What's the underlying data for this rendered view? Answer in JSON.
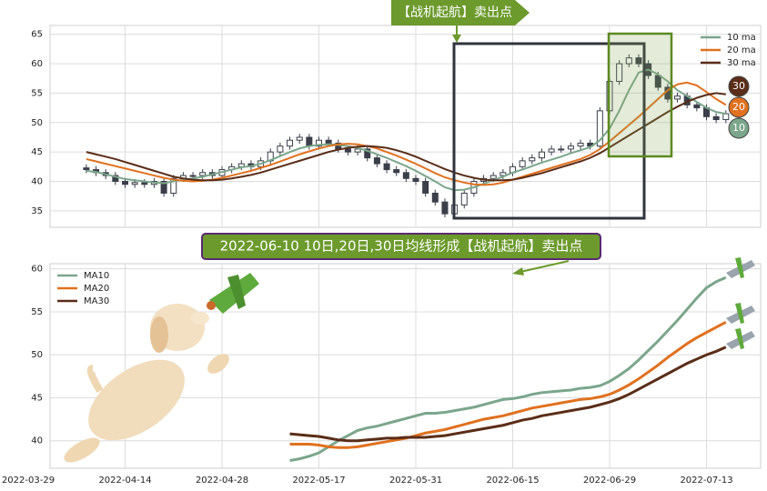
{
  "chart_data": [
    {
      "type": "candlestick",
      "annotation": "【战机起航】卖出点",
      "legend": "upper right",
      "grid": true,
      "ylim": [
        32.2,
        66.5
      ],
      "yticks": [
        35,
        40,
        45,
        50,
        55,
        60,
        65
      ],
      "candle_color": "#3a3f4a",
      "open": [
        null,
        null,
        null,
        null,
        null,
        null,
        42.3,
        42,
        41.5,
        41,
        40,
        39.5,
        39.8,
        39.5,
        40,
        38,
        40.5,
        41,
        41,
        41.5,
        41,
        42,
        42.5,
        43,
        42.5,
        43.5,
        45,
        46,
        47,
        47.5,
        46,
        47,
        46.5,
        45.5,
        45,
        45.5,
        44,
        43,
        42,
        41.5,
        40.5,
        40,
        38,
        36.5,
        34.5,
        36,
        38,
        40,
        40.5,
        41,
        41.5,
        42.5,
        43.5,
        44,
        45,
        45.5,
        45.5,
        46,
        46.5,
        46,
        52,
        57,
        60,
        61,
        60,
        58,
        56,
        54,
        54.5,
        53,
        52.5,
        51,
        50.5,
        null,
        null,
        null
      ],
      "high": [
        null,
        null,
        null,
        null,
        null,
        null,
        42.9,
        42.6,
        42.1,
        41.6,
        40.6,
        40.4,
        40.4,
        40.6,
        40.6,
        41.1,
        41.6,
        41.6,
        42.1,
        42.1,
        42.6,
        43.1,
        43.6,
        43.6,
        44.1,
        45.6,
        46.6,
        47.6,
        48.1,
        48.1,
        47.6,
        47.6,
        47.1,
        46.1,
        46.1,
        46.1,
        44.6,
        43.6,
        42.6,
        42.1,
        41.1,
        40.6,
        38.6,
        37.1,
        36.6,
        38.6,
        40.6,
        41.1,
        41.6,
        42.1,
        43.1,
        44.1,
        44.6,
        45.6,
        46.1,
        46.1,
        46.6,
        47.1,
        47.1,
        52.6,
        57.6,
        60.6,
        61.6,
        61.6,
        60.6,
        58.6,
        56.6,
        55.1,
        55.1,
        53.6,
        53.1,
        51.6,
        52.1,
        null,
        null,
        null
      ],
      "low": [
        null,
        null,
        null,
        null,
        null,
        null,
        41.4,
        40.9,
        40.4,
        39.4,
        38.9,
        38.9,
        38.9,
        38.9,
        37.4,
        37.4,
        39.9,
        40.4,
        40.4,
        40.4,
        40.4,
        41.4,
        41.9,
        41.9,
        41.9,
        42.9,
        44.4,
        45.4,
        46.4,
        45.4,
        45.4,
        45.9,
        44.9,
        44.4,
        44.4,
        43.4,
        42.4,
        41.4,
        40.9,
        39.9,
        39.4,
        37.4,
        35.9,
        33.9,
        33.9,
        35.4,
        37.4,
        39.4,
        39.9,
        40.4,
        40.9,
        41.9,
        42.9,
        43.4,
        44.4,
        44.9,
        44.9,
        45.4,
        45.4,
        45.4,
        51.4,
        56.4,
        59.4,
        59.4,
        57.4,
        55.4,
        53.4,
        53.4,
        52.4,
        51.9,
        50.4,
        49.9,
        49.9,
        null,
        null,
        null
      ],
      "close": [
        null,
        null,
        null,
        null,
        null,
        null,
        42,
        41.5,
        41,
        40,
        39.5,
        39.8,
        39.5,
        40,
        38,
        40.5,
        41,
        41,
        41.5,
        41,
        42,
        42.5,
        43,
        42.5,
        43.5,
        45,
        46,
        47,
        47.5,
        46,
        47,
        46.5,
        45.5,
        45,
        45.5,
        44,
        43,
        42,
        41.5,
        40.5,
        40,
        38,
        36.5,
        34.5,
        36,
        38,
        40,
        40.5,
        41,
        41.5,
        42.5,
        43.5,
        44,
        45,
        45.5,
        45.5,
        46,
        46.5,
        46,
        52,
        57,
        60,
        61,
        60,
        58,
        56,
        54,
        54.5,
        53,
        52.5,
        51,
        50.5,
        51.5,
        null,
        null,
        null
      ],
      "series": [
        {
          "name": "10 ma",
          "color": "#7ba68b",
          "values": [
            null,
            null,
            null,
            null,
            null,
            null,
            41.8,
            41.6,
            41.2,
            40.8,
            40.4,
            40.2,
            40,
            39.8,
            39.7,
            40,
            40.3,
            40.5,
            40.8,
            41.2,
            41.6,
            42,
            42.4,
            42.6,
            43,
            43.6,
            44.3,
            45,
            45.6,
            46,
            46.2,
            46.3,
            46.2,
            46,
            45.7,
            45.2,
            44.6,
            44,
            43.3,
            42.6,
            41.8,
            40.9,
            40,
            39,
            38.5,
            38.6,
            39,
            39.6,
            40.2,
            40.8,
            41.5,
            42,
            42.6,
            43.2,
            43.7,
            44.2,
            44.8,
            45.3,
            45.8,
            47,
            49,
            52,
            55.5,
            58.5,
            59,
            58.2,
            57,
            55.5,
            54.5,
            53.5,
            52.5,
            51.8,
            51.5,
            null,
            null,
            null
          ]
        },
        {
          "name": "20 ma",
          "color": "#e0711f",
          "values": [
            null,
            null,
            null,
            null,
            null,
            null,
            43.8,
            43.4,
            43,
            42.6,
            42.2,
            41.8,
            41.4,
            41,
            40.6,
            40.3,
            40.1,
            40,
            40.1,
            40.3,
            40.6,
            41,
            41.4,
            41.8,
            42.3,
            42.8,
            43.4,
            44,
            44.6,
            45.1,
            45.6,
            46,
            46.3,
            46.4,
            46.3,
            46,
            45.6,
            45,
            44.4,
            43.7,
            43,
            42.2,
            41.4,
            40.7,
            40.2,
            39.8,
            39.5,
            39.4,
            39.5,
            39.8,
            40.3,
            40.8,
            41.3,
            41.8,
            42.3,
            42.8,
            43.3,
            43.8,
            44.5,
            45.5,
            46.8,
            48.2,
            49.6,
            51,
            52.5,
            54,
            55.5,
            56.5,
            56.8,
            56.3,
            55.2,
            54,
            53,
            null,
            null,
            null
          ]
        },
        {
          "name": "30 ma",
          "color": "#5a2d18",
          "values": [
            null,
            null,
            null,
            null,
            null,
            null,
            45,
            44.6,
            44.2,
            43.8,
            43.3,
            42.8,
            42.3,
            41.8,
            41.3,
            40.8,
            40.5,
            40.3,
            40.2,
            40.2,
            40.3,
            40.5,
            40.8,
            41.1,
            41.5,
            42,
            42.5,
            43,
            43.5,
            44,
            44.5,
            45,
            45.4,
            45.7,
            45.9,
            46,
            45.9,
            45.7,
            45.3,
            44.8,
            44.2,
            43.5,
            42.8,
            42.1,
            41.5,
            41,
            40.6,
            40.3,
            40.2,
            40.2,
            40.3,
            40.6,
            41,
            41.4,
            41.9,
            42.4,
            42.9,
            43.4,
            44,
            44.8,
            45.8,
            46.8,
            47.8,
            48.8,
            49.8,
            50.8,
            51.8,
            52.7,
            53.5,
            54.2,
            54.7,
            55,
            54.8,
            null,
            null,
            null
          ]
        }
      ],
      "badges": [
        {
          "label": "30",
          "color": "#5a2d18"
        },
        {
          "label": "20",
          "color": "#e0711f"
        },
        {
          "label": "10",
          "color": "#7ba68b"
        }
      ]
    },
    {
      "type": "line",
      "title": "2022-06-10 10日,20日,30日均线形成【战机起航】卖出点",
      "legend": "upper left",
      "grid": true,
      "ylim": [
        36.8,
        60.6
      ],
      "yticks": [
        40,
        45,
        50,
        55,
        60
      ],
      "categories": [
        "2022-03-29",
        null,
        null,
        null,
        null,
        null,
        null,
        null,
        null,
        null,
        "2022-04-14",
        null,
        null,
        null,
        null,
        null,
        null,
        null,
        null,
        null,
        "2022-04-28",
        null,
        null,
        null,
        null,
        null,
        null,
        null,
        null,
        null,
        "2022-05-17",
        null,
        null,
        null,
        null,
        null,
        null,
        null,
        null,
        null,
        "2022-05-31",
        null,
        null,
        null,
        null,
        null,
        null,
        null,
        null,
        null,
        "2022-06-15",
        null,
        null,
        null,
        null,
        null,
        null,
        null,
        null,
        null,
        "2022-06-29",
        null,
        null,
        null,
        null,
        null,
        null,
        null,
        null,
        null,
        "2022-07-13",
        null,
        null,
        null,
        null,
        null
      ],
      "series": [
        {
          "name": "MA10",
          "color": "#7ba68b",
          "values": [
            null,
            null,
            null,
            null,
            null,
            null,
            null,
            null,
            null,
            null,
            null,
            null,
            null,
            null,
            null,
            null,
            null,
            null,
            null,
            null,
            null,
            null,
            null,
            null,
            null,
            null,
            null,
            37.7,
            37.9,
            38.2,
            38.6,
            39.3,
            40,
            40.6,
            41.2,
            41.5,
            41.7,
            42,
            42.3,
            42.6,
            42.9,
            43.2,
            43.2,
            43.3,
            43.5,
            43.7,
            43.9,
            44.2,
            44.5,
            44.8,
            44.9,
            45.1,
            45.4,
            45.6,
            45.7,
            45.8,
            45.9,
            46.1,
            46.2,
            46.4,
            46.9,
            47.6,
            48.4,
            49.4,
            50.5,
            51.6,
            52.8,
            54,
            55.3,
            56.6,
            57.8,
            58.5,
            59,
            null,
            null,
            null
          ]
        },
        {
          "name": "MA20",
          "color": "#e0711f",
          "values": [
            null,
            null,
            null,
            null,
            null,
            null,
            null,
            null,
            null,
            null,
            null,
            null,
            null,
            null,
            null,
            null,
            null,
            null,
            null,
            null,
            null,
            null,
            null,
            null,
            null,
            null,
            null,
            39.6,
            39.6,
            39.6,
            39.5,
            39.3,
            39.2,
            39.2,
            39.3,
            39.5,
            39.7,
            39.9,
            40.1,
            40.3,
            40.6,
            40.9,
            41.1,
            41.3,
            41.6,
            41.9,
            42.2,
            42.5,
            42.7,
            42.9,
            43.2,
            43.5,
            43.8,
            44,
            44.2,
            44.4,
            44.6,
            44.8,
            44.9,
            45.1,
            45.4,
            45.9,
            46.5,
            47.2,
            48,
            48.8,
            49.7,
            50.5,
            51.3,
            52,
            52.6,
            53.2,
            53.8,
            null,
            null,
            null
          ]
        },
        {
          "name": "MA30",
          "color": "#5a2d18",
          "values": [
            null,
            null,
            null,
            null,
            null,
            null,
            null,
            null,
            null,
            null,
            null,
            null,
            null,
            null,
            null,
            null,
            null,
            null,
            null,
            null,
            null,
            null,
            null,
            null,
            null,
            null,
            null,
            40.8,
            40.7,
            40.6,
            40.5,
            40.3,
            40.1,
            40,
            40,
            40.1,
            40.2,
            40.3,
            40.3,
            40.4,
            40.4,
            40.4,
            40.5,
            40.6,
            40.8,
            41,
            41.2,
            41.4,
            41.6,
            41.8,
            42.1,
            42.4,
            42.6,
            42.9,
            43.1,
            43.3,
            43.5,
            43.7,
            43.9,
            44.2,
            44.5,
            44.9,
            45.4,
            46,
            46.6,
            47.2,
            47.8,
            48.4,
            49,
            49.5,
            50,
            50.4,
            50.9,
            null,
            null,
            null
          ]
        }
      ]
    }
  ]
}
